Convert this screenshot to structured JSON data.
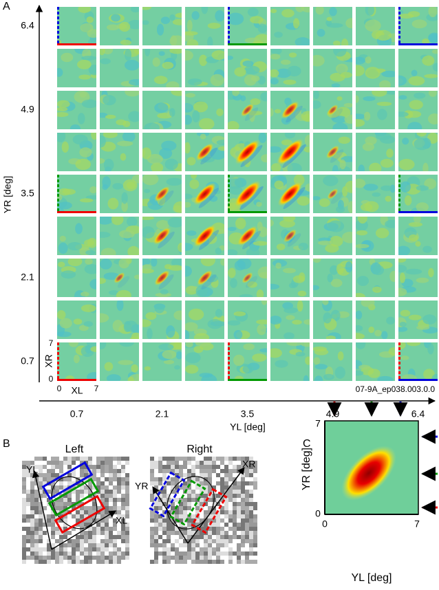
{
  "panel_a": {
    "label": "A",
    "y_axis_title": "YR [deg]",
    "x_axis_title": "YL [deg]",
    "y_ticks": [
      "6.4",
      "4.9",
      "3.5",
      "2.1",
      "0.7"
    ],
    "x_ticks": [
      "0.7",
      "2.1",
      "3.5",
      "4.9",
      "6.4"
    ],
    "inset_y_label": "XR",
    "inset_x_label": "XL",
    "inset_min": "0",
    "inset_max": "7",
    "file_id": "07-9A_ep038.003.0.0"
  },
  "panel_b": {
    "label": "B",
    "left_title": "Left",
    "right_title": "Right",
    "left_y": "YL",
    "left_x": "XL",
    "right_y": "YR",
    "right_x": "XR"
  },
  "panel_c": {
    "label": "C",
    "y_axis_title": "YR [deg]",
    "x_axis_title": "YL [deg]",
    "min": "0",
    "max": "7"
  }
}
